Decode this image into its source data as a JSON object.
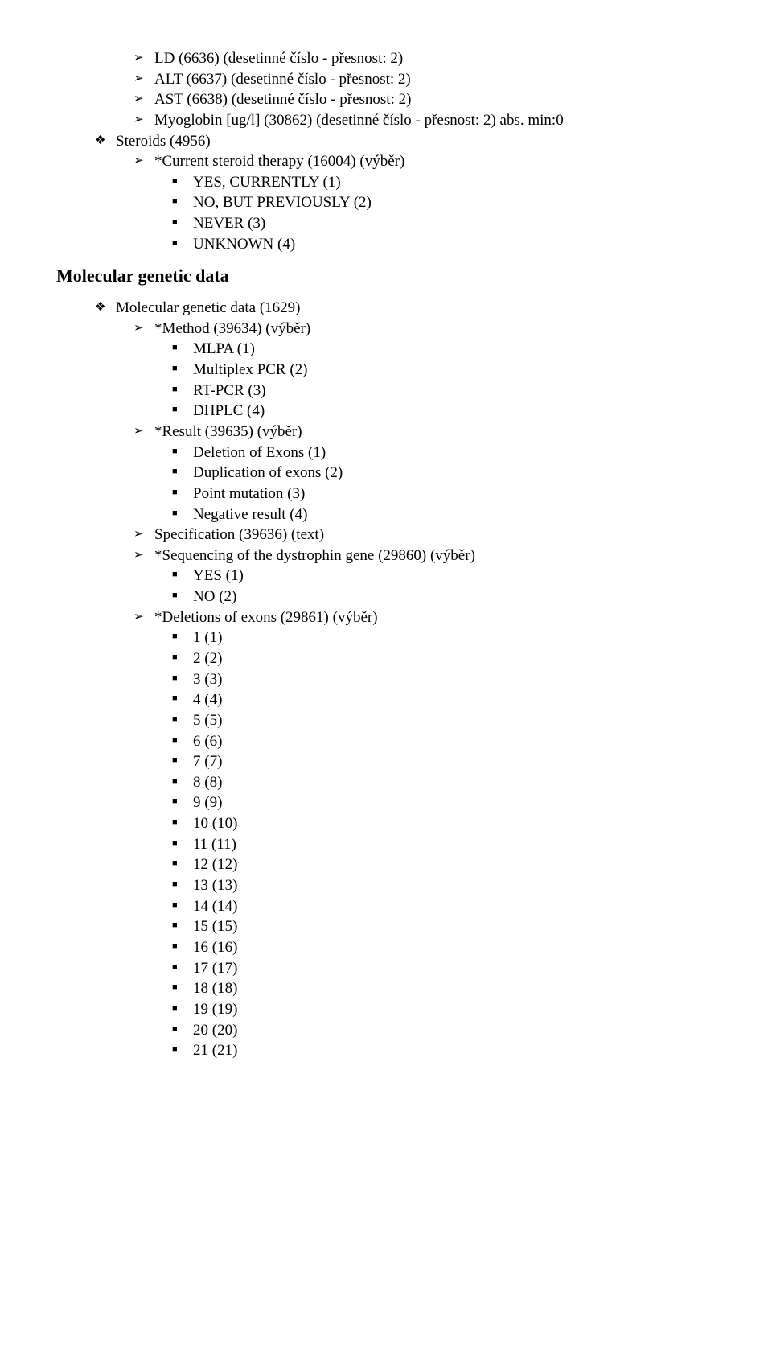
{
  "l1_0": "LD (6636) (desetinné číslo - přesnost: 2)",
  "l1_1": "ALT (6637) (desetinné číslo - přesnost: 2)",
  "l1_2": "AST (6638) (desetinné číslo - přesnost: 2)",
  "l1_3": "Myoglobin [ug/l] (30862) (desetinné číslo - přesnost: 2) abs. min:0",
  "d1": "Steroids (4956)",
  "l2_0": "*Current steroid therapy (16004) (výběr)",
  "s1_0": "YES, CURRENTLY (1)",
  "s1_1": "NO, BUT PREVIOUSLY (2)",
  "s1_2": "NEVER (3)",
  "s1_3": "UNKNOWN (4)",
  "heading": "Molecular genetic data",
  "d2": "Molecular genetic data (1629)",
  "l3_0": "*Method (39634) (výběr)",
  "s2_0": "MLPA (1)",
  "s2_1": "Multiplex PCR (2)",
  "s2_2": "RT-PCR (3)",
  "s2_3": "DHPLC (4)",
  "l3_1": "*Result (39635) (výběr)",
  "s3_0": "Deletion of Exons (1)",
  "s3_1": "Duplication of exons (2)",
  "s3_2": "Point mutation (3)",
  "s3_3": "Negative result (4)",
  "l3_2": "Specification (39636) (text)",
  "l3_3": "*Sequencing of the dystrophin gene (29860) (výběr)",
  "s4_0": "YES (1)",
  "s4_1": "NO (2)",
  "l3_4": "*Deletions of exons (29861) (výběr)",
  "s5_0": "1 (1)",
  "s5_1": "2 (2)",
  "s5_2": "3 (3)",
  "s5_3": "4 (4)",
  "s5_4": "5 (5)",
  "s5_5": "6 (6)",
  "s5_6": "7 (7)",
  "s5_7": "8 (8)",
  "s5_8": "9 (9)",
  "s5_9": "10 (10)",
  "s5_10": "11 (11)",
  "s5_11": "12 (12)",
  "s5_12": "13 (13)",
  "s5_13": "14 (14)",
  "s5_14": "15 (15)",
  "s5_15": "16 (16)",
  "s5_16": "17 (17)",
  "s5_17": "18 (18)",
  "s5_18": "19 (19)",
  "s5_19": "20 (20)",
  "s5_20": "21 (21)"
}
